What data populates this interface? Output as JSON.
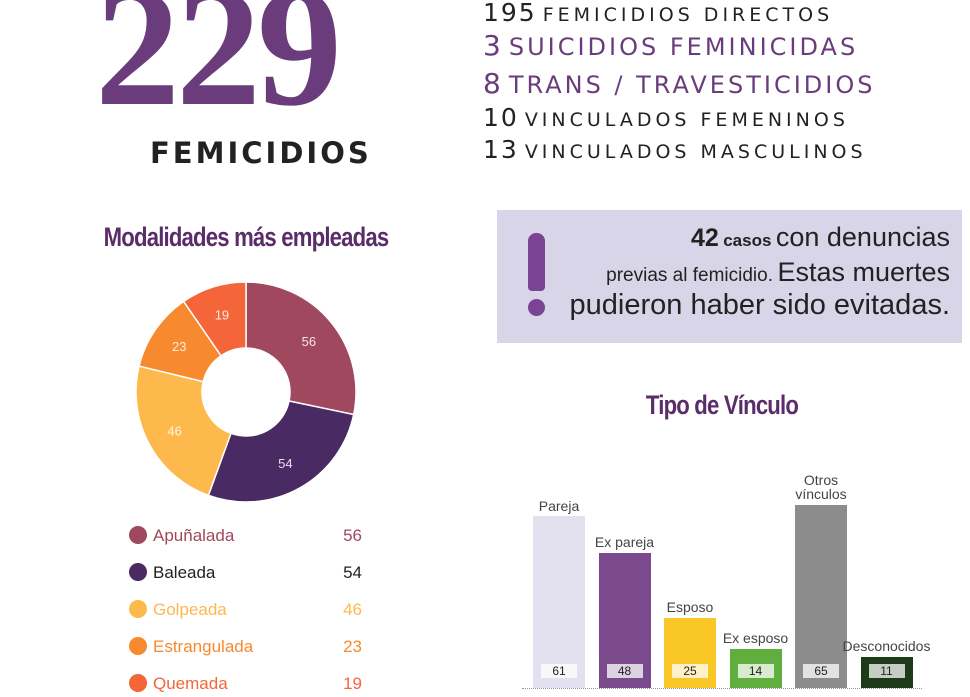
{
  "header": {
    "total": 229,
    "total_label": "FEMICIDIOS",
    "breakdown": [
      {
        "count": 195,
        "label": "FEMICIDIOS DIRECTOS"
      },
      {
        "count": 3,
        "label": "SUICIDIOS FEMINICIDAS"
      },
      {
        "count": 8,
        "label": "TRANS / TRAVESTICIDIOS"
      },
      {
        "count": 10,
        "label": "VINCULADOS FEMENINOS"
      },
      {
        "count": 13,
        "label": "VINCULADOS MASCULINOS"
      }
    ]
  },
  "callout": {
    "count": 42,
    "unit": "casos",
    "line1": "con denuncias",
    "line2a": "previas al femicidio.",
    "line2b": "Estas muertes",
    "line3": "pudieron haber sido evitadas."
  },
  "chart_data": [
    {
      "type": "donut",
      "title": "Modalidades más empleadas",
      "categories": [
        "Apuñalada",
        "Baleada",
        "Golpeada",
        "Estrangulada",
        "Quemada"
      ],
      "values": [
        56,
        54,
        46,
        23,
        19
      ],
      "colors": [
        "#a0485e",
        "#4a2a62",
        "#fdb94b",
        "#f7892f",
        "#f4663a"
      ]
    },
    {
      "type": "bar",
      "title": "Tipo de Vínculo",
      "categories": [
        "Pareja",
        "Ex pareja",
        "Esposo",
        "Ex esposo",
        "Otros vínculos",
        "Desconocidos"
      ],
      "values": [
        61,
        48,
        25,
        14,
        65,
        11
      ],
      "colors": [
        "#e3e1ef",
        "#7b4a8c",
        "#f9c726",
        "#5fae3e",
        "#8c8c8c",
        "#1e3a1a"
      ]
    }
  ]
}
